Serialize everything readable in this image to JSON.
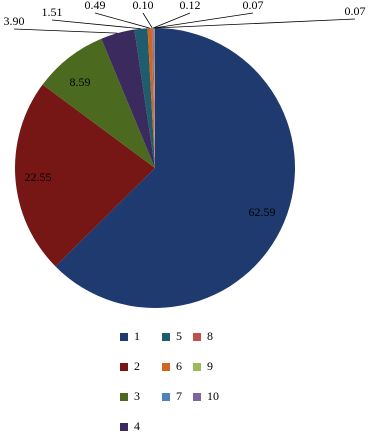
{
  "chart_data": {
    "type": "pie",
    "categories": [
      "1",
      "2",
      "3",
      "4",
      "5",
      "6",
      "7",
      "8",
      "9",
      "10"
    ],
    "values": [
      62.59,
      22.55,
      8.59,
      3.9,
      1.51,
      0.49,
      0.1,
      0.12,
      0.07,
      0.07
    ],
    "value_labels": [
      "62.59",
      "22.55",
      "8.59",
      "3.90",
      "1.51",
      "0.49",
      "0.10",
      "0.12",
      "0.07",
      "0.07"
    ],
    "colors": [
      "#1f3a6e",
      "#761615",
      "#4b6a1f",
      "#3b2a5e",
      "#1f5c6e",
      "#d2661f",
      "#4f81bd",
      "#c0504d",
      "#9bbb59",
      "#8064a2"
    ]
  }
}
